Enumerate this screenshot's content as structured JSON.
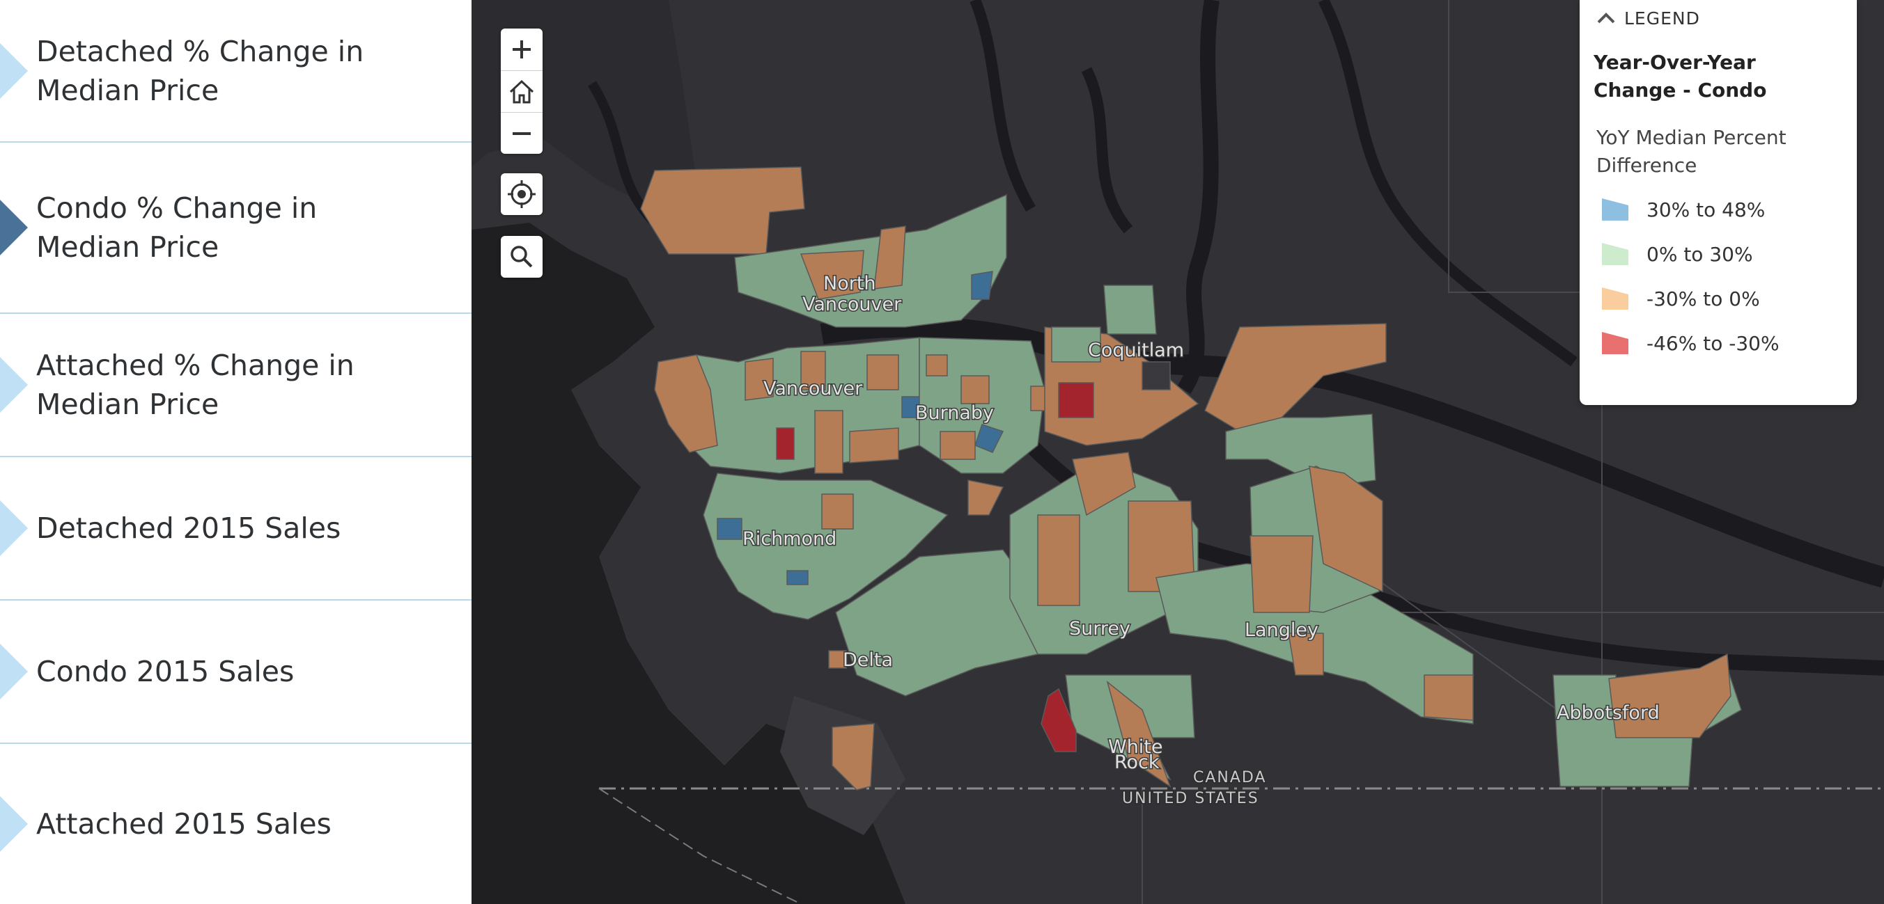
{
  "sidebar": {
    "items": [
      {
        "label": "Detached % Change in Median Price",
        "active": false
      },
      {
        "label": "Condo % Change in Median Price",
        "active": true
      },
      {
        "label": "Attached % Change in Median Price",
        "active": false
      },
      {
        "label": "Detached 2015 Sales",
        "active": false
      },
      {
        "label": "Condo 2015 Sales",
        "active": false
      },
      {
        "label": "Attached 2015 Sales",
        "active": false
      }
    ]
  },
  "map_controls": {
    "zoom_in": "+",
    "home": "home-icon",
    "zoom_out": "−",
    "locate": "locate-icon",
    "search": "search-icon"
  },
  "legend": {
    "header": "LEGEND",
    "title": "Year-Over-Year Change - Condo",
    "subtitle": "YoY Median Percent Difference",
    "classes": [
      {
        "label": "30% to 48%",
        "color": "#8fbfe0"
      },
      {
        "label": "0% to 30%",
        "color": "#cdebcd"
      },
      {
        "label": "-30% to 0%",
        "color": "#f9cd9e"
      },
      {
        "label": "-46% to -30%",
        "color": "#e8706f"
      }
    ]
  },
  "map_colors": {
    "pos_high": "#3d6e96",
    "pos_low": "#7ea386",
    "neg_low": "#b47d55",
    "neg_high": "#a4242d"
  },
  "places": {
    "north_vancouver_1": "North",
    "north_vancouver_2": "Vancouver",
    "vancouver": "Vancouver",
    "burnaby": "Burnaby",
    "coquitlam": "Coquitlam",
    "richmond": "Richmond",
    "delta": "Delta",
    "surrey": "Surrey",
    "langley": "Langley",
    "white_rock_1": "White",
    "white_rock_2": "Rock",
    "abbotsford": "Abbotsford",
    "canada": "CANADA",
    "united_states": "UNITED STATES"
  }
}
